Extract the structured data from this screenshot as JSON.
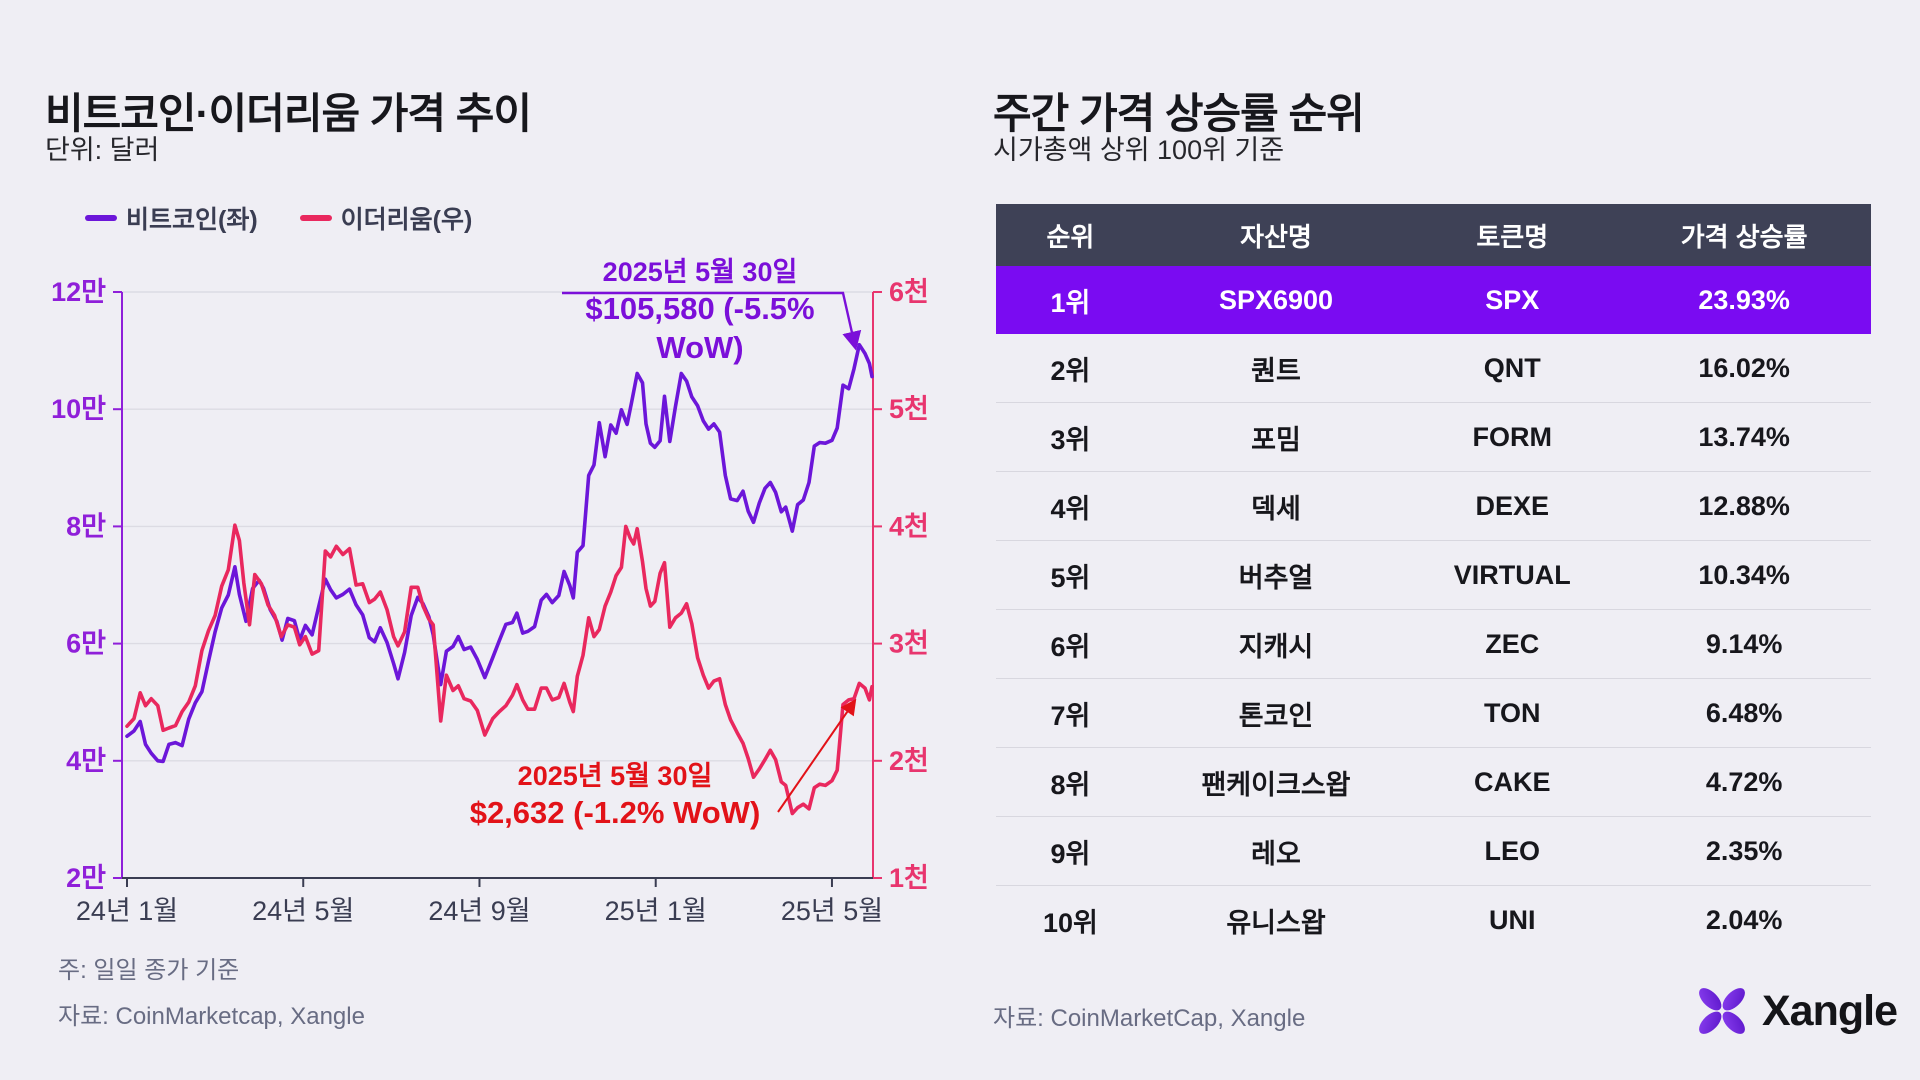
{
  "colors": {
    "background": "#EFEEF4",
    "btc_line": "#6C16D9",
    "eth_line": "#E9285E",
    "left_axis_label": "#8F1FD9",
    "right_axis_label": "#E8356E",
    "x_axis_label": "#3A3D52",
    "grid": "#DCDBE3",
    "table_header_bg": "#3E4156",
    "highlight_row_bg": "#7A0BF2",
    "anno_btc": "#7B0FD9",
    "anno_eth": "#E21218"
  },
  "left_panel": {
    "title": "비트코인·이더리움 가격 추이",
    "subtitle": "단위: 달러",
    "notes": [
      "주: 일일 종가 기준",
      "자료: CoinMarketcap, Xangle"
    ]
  },
  "chart_data": {
    "type": "line",
    "title": "비트코인·이더리움 가격 추이",
    "unit": "달러 (USD)",
    "x_unit": "months since 2024-01-01",
    "x_ticks": [
      "24년 1월",
      "24년 5월",
      "24년 9월",
      "25년 1월",
      "25년 5월"
    ],
    "left_axis": {
      "name": "비트코인 가격",
      "range": [
        20000,
        120000
      ],
      "ticks": [
        "2만",
        "4만",
        "6만",
        "8만",
        "10만",
        "12만"
      ]
    },
    "right_axis": {
      "name": "이더리움 가격",
      "range": [
        1000,
        6000
      ],
      "ticks": [
        "1천",
        "2천",
        "3천",
        "4천",
        "5천",
        "6천"
      ]
    },
    "grid": true,
    "legend_position": "top-left",
    "series": [
      {
        "name": "비트코인(좌)",
        "axis": "left",
        "color": "#6C16D9",
        "points": [
          [
            0,
            44200
          ],
          [
            0.16,
            45100
          ],
          [
            0.3,
            46700
          ],
          [
            0.42,
            42800
          ],
          [
            0.55,
            41300
          ],
          [
            0.7,
            40000
          ],
          [
            0.82,
            39900
          ],
          [
            0.95,
            42800
          ],
          [
            1.1,
            43100
          ],
          [
            1.25,
            42600
          ],
          [
            1.4,
            47100
          ],
          [
            1.55,
            49900
          ],
          [
            1.7,
            51800
          ],
          [
            1.85,
            57000
          ],
          [
            2.0,
            62000
          ],
          [
            2.15,
            66100
          ],
          [
            2.3,
            68300
          ],
          [
            2.45,
            73100
          ],
          [
            2.55,
            68400
          ],
          [
            2.7,
            63800
          ],
          [
            2.85,
            69400
          ],
          [
            3.0,
            70800
          ],
          [
            3.1,
            69400
          ],
          [
            3.25,
            65800
          ],
          [
            3.4,
            63800
          ],
          [
            3.52,
            60600
          ],
          [
            3.65,
            64300
          ],
          [
            3.8,
            63900
          ],
          [
            3.92,
            60600
          ],
          [
            4.05,
            63100
          ],
          [
            4.2,
            61500
          ],
          [
            4.35,
            66300
          ],
          [
            4.5,
            71000
          ],
          [
            4.62,
            69200
          ],
          [
            4.75,
            67800
          ],
          [
            4.9,
            68400
          ],
          [
            5.05,
            69300
          ],
          [
            5.2,
            66600
          ],
          [
            5.35,
            64900
          ],
          [
            5.5,
            61000
          ],
          [
            5.62,
            60300
          ],
          [
            5.75,
            62700
          ],
          [
            5.9,
            60200
          ],
          [
            6.05,
            56600
          ],
          [
            6.15,
            54000
          ],
          [
            6.3,
            58500
          ],
          [
            6.45,
            64800
          ],
          [
            6.6,
            67900
          ],
          [
            6.72,
            66800
          ],
          [
            6.85,
            64600
          ],
          [
            6.95,
            61500
          ],
          [
            7.12,
            53000
          ],
          [
            7.25,
            58700
          ],
          [
            7.4,
            59500
          ],
          [
            7.52,
            61200
          ],
          [
            7.65,
            59000
          ],
          [
            7.8,
            59400
          ],
          [
            7.95,
            57300
          ],
          [
            8.12,
            54200
          ],
          [
            8.3,
            57600
          ],
          [
            8.45,
            60500
          ],
          [
            8.6,
            63300
          ],
          [
            8.75,
            63600
          ],
          [
            8.85,
            65200
          ],
          [
            8.98,
            61800
          ],
          [
            9.1,
            62100
          ],
          [
            9.25,
            62900
          ],
          [
            9.4,
            67400
          ],
          [
            9.52,
            68400
          ],
          [
            9.65,
            67000
          ],
          [
            9.8,
            68200
          ],
          [
            9.92,
            72300
          ],
          [
            10.05,
            69900
          ],
          [
            10.13,
            67800
          ],
          [
            10.22,
            75600
          ],
          [
            10.35,
            76700
          ],
          [
            10.48,
            88700
          ],
          [
            10.6,
            90500
          ],
          [
            10.72,
            97700
          ],
          [
            10.85,
            91900
          ],
          [
            10.98,
            97300
          ],
          [
            11.1,
            95900
          ],
          [
            11.22,
            99900
          ],
          [
            11.35,
            97400
          ],
          [
            11.45,
            101100
          ],
          [
            11.58,
            106100
          ],
          [
            11.7,
            104500
          ],
          [
            11.78,
            97500
          ],
          [
            11.88,
            94200
          ],
          [
            11.98,
            93500
          ],
          [
            12.1,
            94600
          ],
          [
            12.2,
            102200
          ],
          [
            12.32,
            94500
          ],
          [
            12.45,
            100500
          ],
          [
            12.58,
            106100
          ],
          [
            12.7,
            104800
          ],
          [
            12.82,
            102100
          ],
          [
            12.95,
            100600
          ],
          [
            13.08,
            98000
          ],
          [
            13.2,
            96600
          ],
          [
            13.32,
            97500
          ],
          [
            13.45,
            96100
          ],
          [
            13.58,
            88700
          ],
          [
            13.7,
            84700
          ],
          [
            13.85,
            84400
          ],
          [
            13.98,
            86000
          ],
          [
            14.1,
            82600
          ],
          [
            14.22,
            80700
          ],
          [
            14.35,
            84000
          ],
          [
            14.48,
            86500
          ],
          [
            14.6,
            87500
          ],
          [
            14.72,
            85800
          ],
          [
            14.85,
            82500
          ],
          [
            14.95,
            83300
          ],
          [
            15.1,
            79200
          ],
          [
            15.22,
            83700
          ],
          [
            15.35,
            84500
          ],
          [
            15.48,
            87500
          ],
          [
            15.6,
            93700
          ],
          [
            15.72,
            94300
          ],
          [
            15.85,
            94200
          ],
          [
            16.0,
            94700
          ],
          [
            16.12,
            96800
          ],
          [
            16.25,
            104100
          ],
          [
            16.38,
            103500
          ],
          [
            16.5,
            106900
          ],
          [
            16.62,
            111000
          ],
          [
            16.75,
            109500
          ],
          [
            16.85,
            107800
          ],
          [
            16.94,
            105580
          ]
        ]
      },
      {
        "name": "이더리움(우)",
        "axis": "right",
        "color": "#E9285E",
        "points": [
          [
            0,
            2295
          ],
          [
            0.16,
            2360
          ],
          [
            0.3,
            2580
          ],
          [
            0.42,
            2470
          ],
          [
            0.55,
            2530
          ],
          [
            0.7,
            2470
          ],
          [
            0.82,
            2260
          ],
          [
            0.95,
            2280
          ],
          [
            1.1,
            2300
          ],
          [
            1.25,
            2420
          ],
          [
            1.4,
            2500
          ],
          [
            1.55,
            2640
          ],
          [
            1.7,
            2940
          ],
          [
            1.85,
            3110
          ],
          [
            2.0,
            3240
          ],
          [
            2.15,
            3490
          ],
          [
            2.3,
            3630
          ],
          [
            2.45,
            4010
          ],
          [
            2.55,
            3880
          ],
          [
            2.65,
            3520
          ],
          [
            2.78,
            3160
          ],
          [
            2.9,
            3590
          ],
          [
            3.05,
            3510
          ],
          [
            3.2,
            3330
          ],
          [
            3.35,
            3240
          ],
          [
            3.5,
            3060
          ],
          [
            3.65,
            3160
          ],
          [
            3.8,
            3140
          ],
          [
            3.92,
            2990
          ],
          [
            4.05,
            3060
          ],
          [
            4.2,
            2910
          ],
          [
            4.35,
            2940
          ],
          [
            4.5,
            3790
          ],
          [
            4.62,
            3740
          ],
          [
            4.75,
            3830
          ],
          [
            4.9,
            3760
          ],
          [
            5.05,
            3810
          ],
          [
            5.2,
            3500
          ],
          [
            5.35,
            3510
          ],
          [
            5.5,
            3350
          ],
          [
            5.62,
            3380
          ],
          [
            5.75,
            3440
          ],
          [
            5.9,
            3290
          ],
          [
            6.05,
            3060
          ],
          [
            6.15,
            2980
          ],
          [
            6.3,
            3100
          ],
          [
            6.45,
            3480
          ],
          [
            6.6,
            3480
          ],
          [
            6.72,
            3320
          ],
          [
            6.85,
            3210
          ],
          [
            6.95,
            3160
          ],
          [
            7.12,
            2340
          ],
          [
            7.25,
            2730
          ],
          [
            7.4,
            2600
          ],
          [
            7.52,
            2640
          ],
          [
            7.65,
            2530
          ],
          [
            7.8,
            2510
          ],
          [
            7.95,
            2430
          ],
          [
            8.12,
            2220
          ],
          [
            8.3,
            2360
          ],
          [
            8.45,
            2420
          ],
          [
            8.6,
            2470
          ],
          [
            8.75,
            2560
          ],
          [
            8.85,
            2650
          ],
          [
            8.98,
            2520
          ],
          [
            9.1,
            2440
          ],
          [
            9.25,
            2440
          ],
          [
            9.4,
            2620
          ],
          [
            9.52,
            2620
          ],
          [
            9.65,
            2520
          ],
          [
            9.8,
            2540
          ],
          [
            9.92,
            2660
          ],
          [
            10.05,
            2500
          ],
          [
            10.13,
            2420
          ],
          [
            10.22,
            2720
          ],
          [
            10.35,
            2900
          ],
          [
            10.48,
            3220
          ],
          [
            10.6,
            3060
          ],
          [
            10.72,
            3120
          ],
          [
            10.85,
            3320
          ],
          [
            10.98,
            3440
          ],
          [
            11.1,
            3580
          ],
          [
            11.22,
            3650
          ],
          [
            11.32,
            4000
          ],
          [
            11.42,
            3900
          ],
          [
            11.5,
            3850
          ],
          [
            11.58,
            3980
          ],
          [
            11.7,
            3700
          ],
          [
            11.78,
            3470
          ],
          [
            11.88,
            3320
          ],
          [
            11.98,
            3360
          ],
          [
            12.1,
            3600
          ],
          [
            12.2,
            3690
          ],
          [
            12.32,
            3140
          ],
          [
            12.45,
            3220
          ],
          [
            12.58,
            3260
          ],
          [
            12.7,
            3340
          ],
          [
            12.82,
            3170
          ],
          [
            12.95,
            2880
          ],
          [
            13.08,
            2730
          ],
          [
            13.2,
            2620
          ],
          [
            13.32,
            2680
          ],
          [
            13.45,
            2700
          ],
          [
            13.58,
            2480
          ],
          [
            13.7,
            2350
          ],
          [
            13.85,
            2240
          ],
          [
            13.98,
            2150
          ],
          [
            14.1,
            2020
          ],
          [
            14.22,
            1860
          ],
          [
            14.35,
            1930
          ],
          [
            14.48,
            2010
          ],
          [
            14.6,
            2090
          ],
          [
            14.72,
            2010
          ],
          [
            14.85,
            1820
          ],
          [
            14.95,
            1790
          ],
          [
            15.1,
            1550
          ],
          [
            15.22,
            1600
          ],
          [
            15.35,
            1630
          ],
          [
            15.48,
            1590
          ],
          [
            15.6,
            1770
          ],
          [
            15.72,
            1800
          ],
          [
            15.85,
            1790
          ],
          [
            16.0,
            1830
          ],
          [
            16.12,
            1920
          ],
          [
            16.25,
            2480
          ],
          [
            16.38,
            2520
          ],
          [
            16.5,
            2530
          ],
          [
            16.62,
            2660
          ],
          [
            16.75,
            2620
          ],
          [
            16.85,
            2520
          ],
          [
            16.94,
            2632
          ]
        ]
      }
    ],
    "annotations": [
      {
        "series": "비트코인",
        "date": "2025년 5월 30일",
        "value": "$105,580 (-5.5% WoW)",
        "color": "#7B0FD9"
      },
      {
        "series": "이더리움",
        "date": "2025년 5월 30일",
        "value": "$2,632 (-1.2% WoW)",
        "color": "#E21218"
      }
    ]
  },
  "right_panel": {
    "title": "주간 가격 상승률 순위",
    "subtitle": "시가총액 상위 100위 기준",
    "source": "자료: CoinMarketCap, Xangle",
    "table": {
      "headers": [
        "순위",
        "자산명",
        "토큰명",
        "가격 상승률"
      ],
      "rows": [
        {
          "rank": "1위",
          "asset": "SPX6900",
          "token": "SPX",
          "change": "23.93%",
          "highlight": true
        },
        {
          "rank": "2위",
          "asset": "퀀트",
          "token": "QNT",
          "change": "16.02%",
          "highlight": false
        },
        {
          "rank": "3위",
          "asset": "포밈",
          "token": "FORM",
          "change": "13.74%",
          "highlight": false
        },
        {
          "rank": "4위",
          "asset": "덱세",
          "token": "DEXE",
          "change": "12.88%",
          "highlight": false
        },
        {
          "rank": "5위",
          "asset": "버추얼",
          "token": "VIRTUAL",
          "change": "10.34%",
          "highlight": false
        },
        {
          "rank": "6위",
          "asset": "지캐시",
          "token": "ZEC",
          "change": "9.14%",
          "highlight": false
        },
        {
          "rank": "7위",
          "asset": "톤코인",
          "token": "TON",
          "change": "6.48%",
          "highlight": false
        },
        {
          "rank": "8위",
          "asset": "팬케이크스왑",
          "token": "CAKE",
          "change": "4.72%",
          "highlight": false
        },
        {
          "rank": "9위",
          "asset": "레오",
          "token": "LEO",
          "change": "2.35%",
          "highlight": false
        },
        {
          "rank": "10위",
          "asset": "유니스왑",
          "token": "UNI",
          "change": "2.04%",
          "highlight": false
        }
      ]
    }
  },
  "logo": {
    "text": "Xangle",
    "icon": "xangle-petal-x-mark"
  }
}
